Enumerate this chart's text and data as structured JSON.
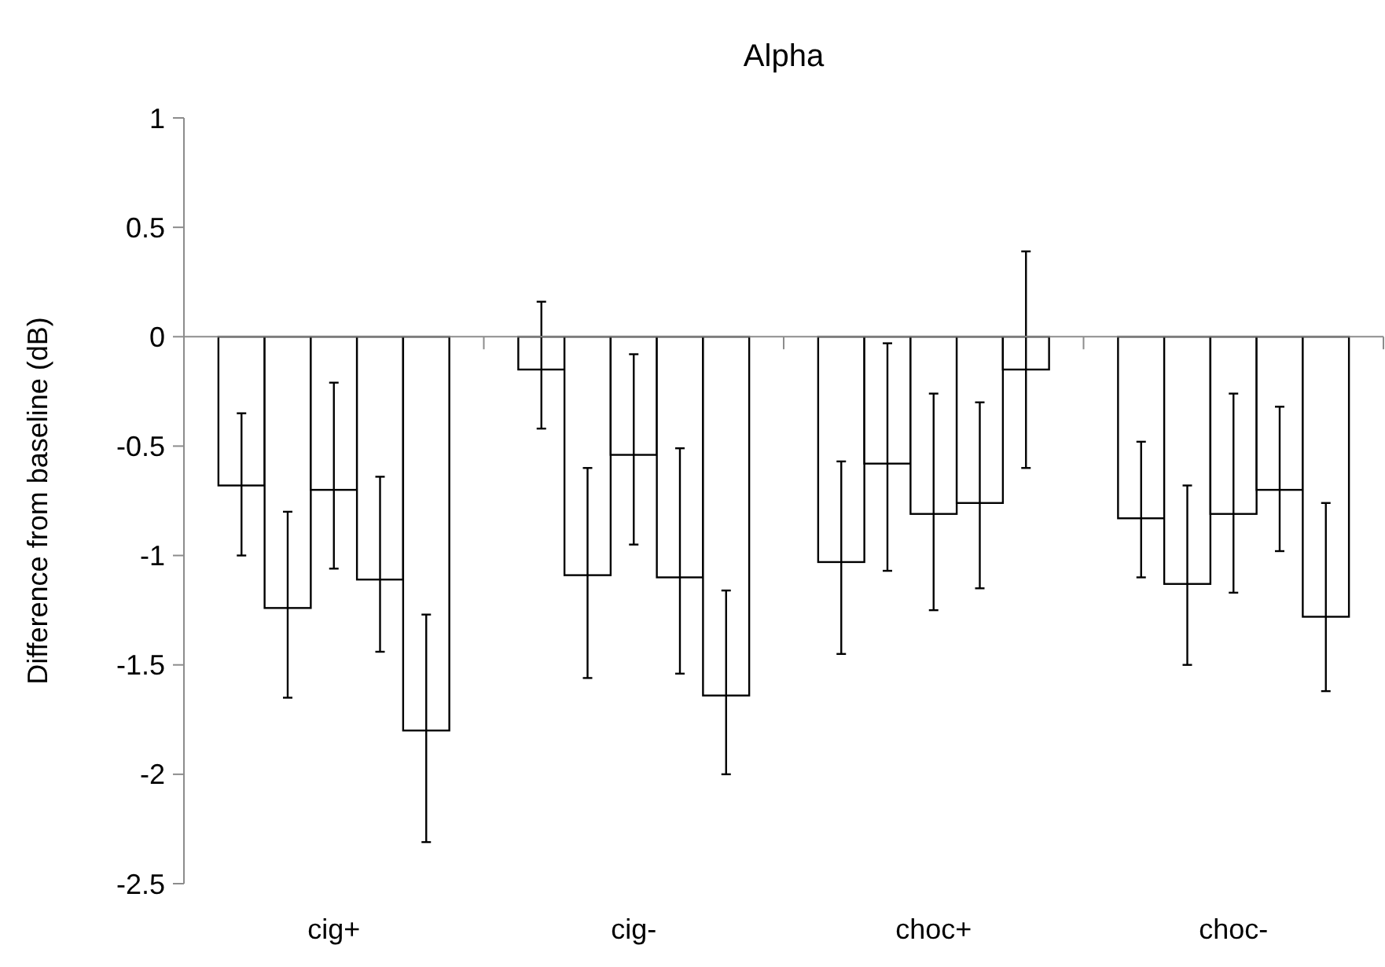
{
  "chart_data": {
    "type": "bar",
    "title": "Alpha",
    "ylabel": "Difference from baseline (dB)",
    "categories": [
      "cig+",
      "cig-",
      "choc+",
      "choc-"
    ],
    "series": [
      {
        "color": "#ffffff",
        "values": [
          -0.68,
          -0.15,
          -1.03,
          -0.83
        ],
        "errors": [
          [
            -1.0,
            -0.35
          ],
          [
            -0.42,
            0.16
          ],
          [
            -1.45,
            -0.57
          ],
          [
            -1.1,
            -0.48
          ]
        ]
      },
      {
        "color": "#ffffff",
        "values": [
          -1.24,
          -1.09,
          -0.58,
          -1.13
        ],
        "errors": [
          [
            -1.65,
            -0.8
          ],
          [
            -1.56,
            -0.6
          ],
          [
            -1.07,
            -0.03
          ],
          [
            -1.5,
            -0.68
          ]
        ]
      },
      {
        "color": "#ffffff",
        "values": [
          -0.7,
          -0.54,
          -0.81,
          -0.81
        ],
        "errors": [
          [
            -1.06,
            -0.21
          ],
          [
            -0.95,
            -0.08
          ],
          [
            -1.25,
            -0.26
          ],
          [
            -1.17,
            -0.26
          ]
        ]
      },
      {
        "color": "#ffffff",
        "values": [
          -1.11,
          -1.1,
          -0.76,
          -0.7
        ],
        "errors": [
          [
            -1.44,
            -0.64
          ],
          [
            -1.54,
            -0.51
          ],
          [
            -1.15,
            -0.3
          ],
          [
            -0.98,
            -0.32
          ]
        ]
      },
      {
        "color": "#ffffff",
        "values": [
          -1.8,
          -1.64,
          -0.15,
          -1.28
        ],
        "errors": [
          [
            -2.31,
            -1.27
          ],
          [
            -2.0,
            -1.16
          ],
          [
            -0.6,
            0.39
          ],
          [
            -1.62,
            -0.76
          ]
        ]
      }
    ],
    "ylim": [
      -2.5,
      1
    ],
    "yticks": [
      -2.5,
      -2,
      -1.5,
      -1,
      -0.5,
      0,
      0.5,
      1
    ]
  }
}
